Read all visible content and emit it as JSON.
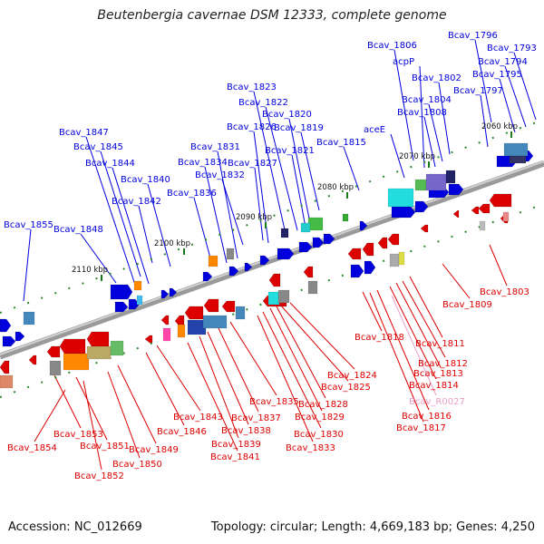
{
  "title": "Beutenbergia cavernae DSM 12333, complete genome",
  "footer": {
    "accession": "Accession: NC_012669",
    "summary": "Topology: circular; Length: 4,669,183 bp; Genes: 4,250"
  },
  "colors": {
    "forward": "#0000dd",
    "reverse": "#dd0000",
    "rna": "#e8a0c8",
    "backbone": "#888888"
  },
  "kbp_marks": [
    "2060 kbp",
    "2070 kbp",
    "2080 kbp",
    "2090 kbp",
    "2100 kbp",
    "2110 kbp"
  ],
  "forward_labels": [
    "Bcav_1796",
    "Bcav_1806",
    "Bcav_1793",
    "Bcav_1794",
    "acpP",
    "Bcav_1795",
    "Bcav_1802",
    "Bcav_1797",
    "Bcav_1823",
    "Bcav_1804",
    "Bcav_1822",
    "Bcav_1808",
    "Bcav_1820",
    "Bcav_1826",
    "Bcav_1819",
    "aceE",
    "Bcav_1847",
    "Bcav_1815",
    "Bcav_1845",
    "Bcav_1831",
    "Bcav_1821",
    "Bcav_1844",
    "Bcav_1834",
    "Bcav_1827",
    "Bcav_1832",
    "Bcav_1840",
    "Bcav_1836",
    "Bcav_1842",
    "Bcav_1855",
    "Bcav_1848"
  ],
  "reverse_labels": [
    "Bcav_1803",
    "Bcav_1809",
    "Bcav_1818",
    "Bcav_1811",
    "Bcav_1812",
    "Bcav_1813",
    "Bcav_1824",
    "Bcav_1814",
    "Bcav_1825",
    "Bcav_R0027",
    "Bcav_1835",
    "Bcav_1828",
    "Bcav_1816",
    "Bcav_1843",
    "Bcav_1837",
    "Bcav_1829",
    "Bcav_1817",
    "Bcav_1846",
    "Bcav_1838",
    "Bcav_1830",
    "Bcav_1853",
    "Bcav_1839",
    "Bcav_1833",
    "Bcav_1854",
    "Bcav_1851",
    "Bcav_1849",
    "Bcav_1841",
    "Bcav_1850",
    "Bcav_1852"
  ]
}
